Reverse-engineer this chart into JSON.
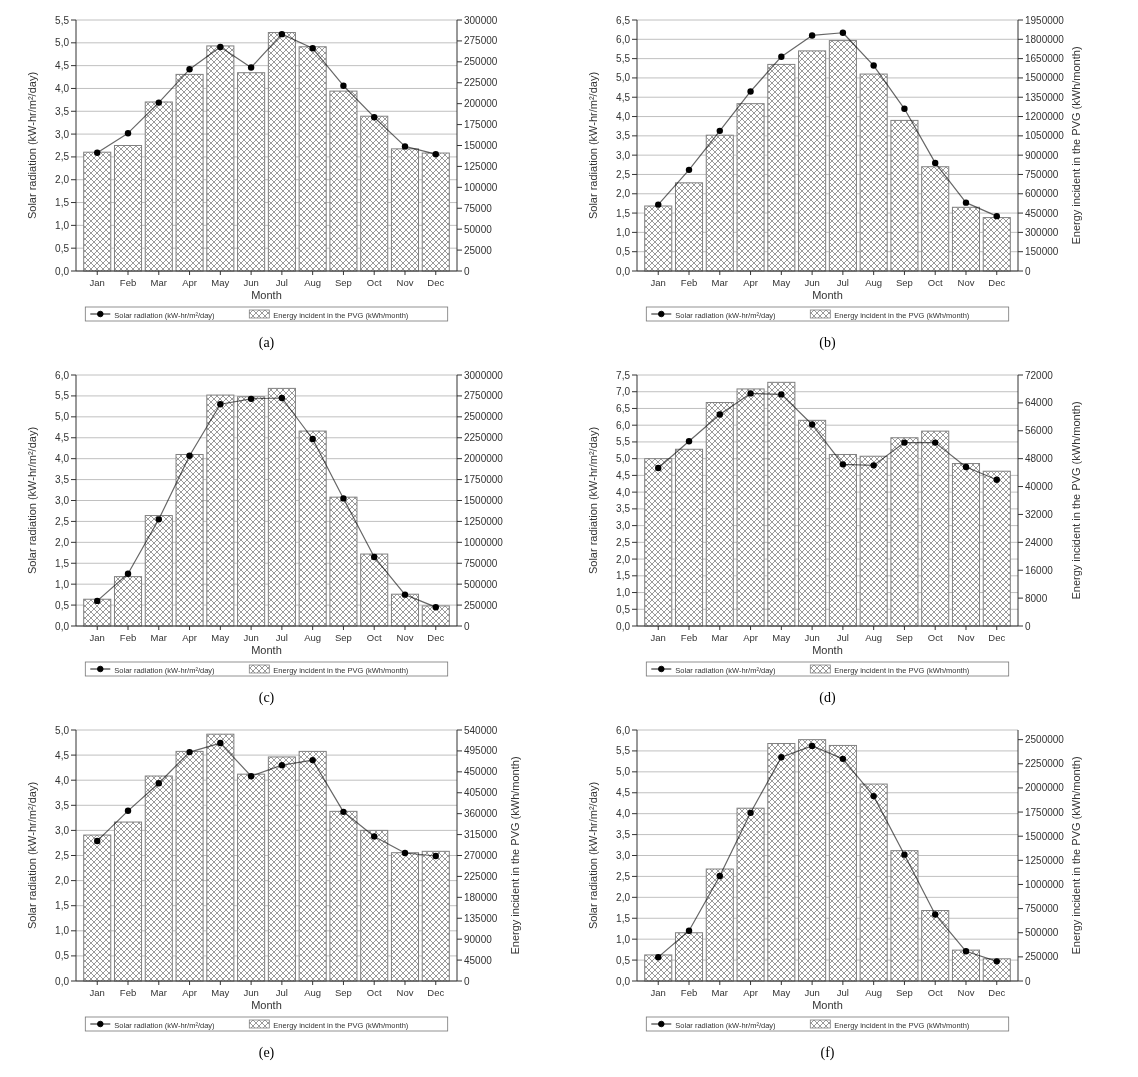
{
  "chart_data": [
    {
      "type": "bar",
      "categories": [
        "Jan",
        "Feb",
        "Mar",
        "Apr",
        "May",
        "Jun",
        "Jul",
        "Aug",
        "Sep",
        "Oct",
        "Nov",
        "Dec"
      ],
      "xlabel": "Month",
      "ylabel": "Solar radiation (kW-hr/m²/day)",
      "annotations": [
        "(a)"
      ],
      "grid": "y",
      "legend": "bottom",
      "marker": "circle",
      "ylim": [
        0,
        5.5
      ],
      "yticks": [
        {
          "value": 0,
          "label": "0,0"
        },
        {
          "value": 0.5,
          "label": "0,5"
        },
        {
          "value": 1,
          "label": "1,0"
        },
        {
          "value": 1.5,
          "label": "1,5"
        },
        {
          "value": 2,
          "label": "2,0"
        },
        {
          "value": 2.5,
          "label": "2,5"
        },
        {
          "value": 3,
          "label": "3,0"
        },
        {
          "value": 3.5,
          "label": "3,5"
        },
        {
          "value": 4,
          "label": "4,0"
        },
        {
          "value": 4.5,
          "label": "4,5"
        },
        {
          "value": 5,
          "label": "5,0"
        },
        {
          "value": 5.5,
          "label": "5,5"
        }
      ],
      "y2lim": [
        0,
        300000
      ],
      "y2ticks": [
        0,
        25000,
        50000,
        75000,
        100000,
        125000,
        150000,
        175000,
        200000,
        225000,
        250000,
        275000,
        300000
      ],
      "series": [
        {
          "name": "Solar radiation (kW-hr/m²/day)",
          "type": "line",
          "color": "#000000",
          "values": [
            2.59,
            3.02,
            3.69,
            4.42,
            4.91,
            4.46,
            5.19,
            4.88,
            4.06,
            3.37,
            2.73,
            2.56
          ]
        },
        {
          "name": "Energy incident in the PVG (kWh/month)",
          "axis": "y2",
          "color": "#808080",
          "values": [
            142000,
            150000,
            202000,
            235000,
            269000,
            237000,
            285000,
            268000,
            215000,
            185000,
            146000,
            141000
          ]
        }
      ]
    },
    {
      "type": "bar",
      "categories": [
        "Jan",
        "Feb",
        "Mar",
        "Apr",
        "May",
        "Jun",
        "Jul",
        "Aug",
        "Sep",
        "Oct",
        "Nov",
        "Dec"
      ],
      "xlabel": "Month",
      "ylabel": "Solar radiation (kW-hr/m²/day)",
      "y2label": "Energy incident in the PVG (kWh/month)",
      "annotations": [
        "(b)"
      ],
      "grid": "y",
      "legend": "bottom",
      "marker": "circle",
      "ylim": [
        0,
        6.5
      ],
      "yticks": [
        {
          "value": 0,
          "label": "0,0"
        },
        {
          "value": 0.5,
          "label": "0,5"
        },
        {
          "value": 1,
          "label": "1,0"
        },
        {
          "value": 1.5,
          "label": "1,5"
        },
        {
          "value": 2,
          "label": "2,0"
        },
        {
          "value": 2.5,
          "label": "2,5"
        },
        {
          "value": 3,
          "label": "3,0"
        },
        {
          "value": 3.5,
          "label": "3,5"
        },
        {
          "value": 4,
          "label": "4,0"
        },
        {
          "value": 4.5,
          "label": "4,5"
        },
        {
          "value": 5,
          "label": "5,0"
        },
        {
          "value": 5.5,
          "label": "5,5"
        },
        {
          "value": 6,
          "label": "6,0"
        },
        {
          "value": 6.5,
          "label": "6,5"
        }
      ],
      "y2lim": [
        0,
        1950000
      ],
      "y2ticks": [
        0,
        150000,
        300000,
        450000,
        600000,
        750000,
        900000,
        1050000,
        1200000,
        1350000,
        1500000,
        1650000,
        1800000,
        1950000
      ],
      "series": [
        {
          "name": "Solar radiation (kW-hr/m²/day)",
          "type": "line",
          "color": "#000000",
          "values": [
            1.72,
            2.62,
            3.63,
            4.65,
            5.55,
            6.1,
            6.17,
            5.32,
            4.2,
            2.8,
            1.77,
            1.42
          ]
        },
        {
          "name": "Energy incident in the PVG (kWh/month)",
          "axis": "y2",
          "color": "#808080",
          "values": [
            505000,
            685000,
            1055000,
            1300000,
            1605000,
            1710000,
            1790000,
            1530000,
            1170000,
            810000,
            495000,
            415000
          ]
        }
      ]
    },
    {
      "type": "bar",
      "categories": [
        "Jan",
        "Feb",
        "Mar",
        "Apr",
        "May",
        "Jun",
        "Jul",
        "Aug",
        "Sep",
        "Oct",
        "Nov",
        "Dec"
      ],
      "xlabel": "Month",
      "ylabel": "Solar radiation (kW-hr/m²/day)",
      "annotations": [
        "(c)"
      ],
      "grid": "y",
      "legend": "bottom",
      "marker": "circle",
      "ylim": [
        0,
        6
      ],
      "yticks": [
        {
          "value": 0,
          "label": "0,0"
        },
        {
          "value": 0.5,
          "label": "0,5"
        },
        {
          "value": 1,
          "label": "1,0"
        },
        {
          "value": 1.5,
          "label": "1,5"
        },
        {
          "value": 2,
          "label": "2,0"
        },
        {
          "value": 2.5,
          "label": "2,5"
        },
        {
          "value": 3,
          "label": "3,0"
        },
        {
          "value": 3.5,
          "label": "3,5"
        },
        {
          "value": 4,
          "label": "4,0"
        },
        {
          "value": 4.5,
          "label": "4,5"
        },
        {
          "value": 5,
          "label": "5,0"
        },
        {
          "value": 5.5,
          "label": "5,5"
        },
        {
          "value": 6,
          "label": "6,0"
        }
      ],
      "y2lim": [
        0,
        3000000
      ],
      "y2ticks": [
        0,
        250000,
        500000,
        750000,
        1000000,
        1250000,
        1500000,
        1750000,
        2000000,
        2250000,
        2500000,
        2750000,
        3000000
      ],
      "series": [
        {
          "name": "Solar radiation (kW-hr/m²/day)",
          "type": "line",
          "color": "#000000",
          "values": [
            0.6,
            1.25,
            2.55,
            4.07,
            5.3,
            5.43,
            5.45,
            4.47,
            3.05,
            1.65,
            0.75,
            0.45
          ]
        },
        {
          "name": "Energy incident in the PVG (kWh/month)",
          "axis": "y2",
          "color": "#808080",
          "values": [
            320000,
            590000,
            1320000,
            2050000,
            2760000,
            2740000,
            2840000,
            2330000,
            1540000,
            860000,
            380000,
            240000
          ]
        }
      ]
    },
    {
      "type": "bar",
      "categories": [
        "Jan",
        "Feb",
        "Mar",
        "Apr",
        "May",
        "Jun",
        "Jul",
        "Aug",
        "Sep",
        "Oct",
        "Nov",
        "Dec"
      ],
      "xlabel": "Month",
      "ylabel": "Solar radiation (kW-hr/m²/day)",
      "y2label": "Energy incident in the PVG (kWh/month)",
      "annotations": [
        "(d)"
      ],
      "grid": "y",
      "legend": "bottom",
      "marker": "circle",
      "ylim": [
        0,
        7.5
      ],
      "yticks": [
        {
          "value": 0,
          "label": "0,0"
        },
        {
          "value": 0.5,
          "label": "0,5"
        },
        {
          "value": 1,
          "label": "1,0"
        },
        {
          "value": 1.5,
          "label": "1,5"
        },
        {
          "value": 2,
          "label": "2,0"
        },
        {
          "value": 2.5,
          "label": "2,5"
        },
        {
          "value": 3,
          "label": "3,0"
        },
        {
          "value": 3.5,
          "label": "3,5"
        },
        {
          "value": 4,
          "label": "4,0"
        },
        {
          "value": 4.5,
          "label": "4,5"
        },
        {
          "value": 5,
          "label": "5,0"
        },
        {
          "value": 5.5,
          "label": "5,5"
        },
        {
          "value": 6,
          "label": "6,0"
        },
        {
          "value": 6.5,
          "label": "6,5"
        },
        {
          "value": 7,
          "label": "7,0"
        },
        {
          "value": 7.5,
          "label": "7,5"
        }
      ],
      "y2lim": [
        0,
        72000
      ],
      "y2ticks": [
        0,
        8000,
        16000,
        24000,
        32000,
        40000,
        48000,
        56000,
        64000,
        72000
      ],
      "series": [
        {
          "name": "Solar radiation (kW-hr/m²/day)",
          "type": "line",
          "color": "#000000",
          "values": [
            4.72,
            5.52,
            6.32,
            6.95,
            6.92,
            6.02,
            4.83,
            4.8,
            5.48,
            5.48,
            4.75,
            4.37
          ]
        },
        {
          "name": "Energy incident in the PVG (kWh/month)",
          "axis": "y2",
          "color": "#808080",
          "values": [
            48000,
            50700,
            64100,
            68000,
            69900,
            59000,
            49200,
            48700,
            54000,
            55900,
            46600,
            44400
          ]
        }
      ]
    },
    {
      "type": "bar",
      "categories": [
        "Jan",
        "Feb",
        "Mar",
        "Apr",
        "May",
        "Jun",
        "Jul",
        "Aug",
        "Sep",
        "Oct",
        "Nov",
        "Dec"
      ],
      "xlabel": "Month",
      "ylabel": "Solar radiation (kW-hr/m²/day)",
      "y2label": "Energy incident in the PVG (kWh/month)",
      "annotations": [
        "(e)"
      ],
      "grid": "y",
      "legend": "bottom",
      "marker": "circle",
      "ylim": [
        0,
        5
      ],
      "yticks": [
        {
          "value": 0,
          "label": "0,0"
        },
        {
          "value": 0.5,
          "label": "0,5"
        },
        {
          "value": 1,
          "label": "1,0"
        },
        {
          "value": 1.5,
          "label": "1,5"
        },
        {
          "value": 2,
          "label": "2,0"
        },
        {
          "value": 2.5,
          "label": "2,5"
        },
        {
          "value": 3,
          "label": "3,0"
        },
        {
          "value": 3.5,
          "label": "3,5"
        },
        {
          "value": 4,
          "label": "4,0"
        },
        {
          "value": 4.5,
          "label": "4,5"
        },
        {
          "value": 5,
          "label": "5,0"
        }
      ],
      "y2lim": [
        0,
        540000
      ],
      "y2ticks": [
        0,
        45000,
        90000,
        135000,
        180000,
        225000,
        270000,
        315000,
        360000,
        405000,
        450000,
        495000,
        540000
      ],
      "series": [
        {
          "name": "Solar radiation (kW-hr/m²/day)",
          "type": "line",
          "color": "#000000",
          "values": [
            2.79,
            3.39,
            3.94,
            4.56,
            4.74,
            4.08,
            4.3,
            4.4,
            3.37,
            2.88,
            2.55,
            2.49
          ]
        },
        {
          "name": "Energy incident in the PVG (kWh/month)",
          "axis": "y2",
          "color": "#808080",
          "values": [
            314000,
            342000,
            441000,
            494000,
            531000,
            445000,
            482000,
            494000,
            365000,
            324000,
            276000,
            279000
          ]
        }
      ]
    },
    {
      "type": "bar",
      "categories": [
        "Jan",
        "Feb",
        "Mar",
        "Apr",
        "May",
        "Jun",
        "Jul",
        "Aug",
        "Sep",
        "Oct",
        "Nov",
        "Dec"
      ],
      "xlabel": "Month",
      "ylabel": "Solar radiation (kW-hr/m²/day)",
      "y2label": "Energy incident in the PVG (kWh/month)",
      "annotations": [
        "(f)"
      ],
      "grid": "y",
      "legend": "bottom",
      "marker": "circle",
      "ylim": [
        0,
        6
      ],
      "yticks": [
        {
          "value": 0,
          "label": "0,0"
        },
        {
          "value": 0.5,
          "label": "0,5"
        },
        {
          "value": 1,
          "label": "1,0"
        },
        {
          "value": 1.5,
          "label": "1,5"
        },
        {
          "value": 2,
          "label": "2,0"
        },
        {
          "value": 2.5,
          "label": "2,5"
        },
        {
          "value": 3,
          "label": "3,0"
        },
        {
          "value": 3.5,
          "label": "3,5"
        },
        {
          "value": 4,
          "label": "4,0"
        },
        {
          "value": 4.5,
          "label": "4,5"
        },
        {
          "value": 5,
          "label": "5,0"
        },
        {
          "value": 5.5,
          "label": "5,5"
        },
        {
          "value": 6,
          "label": "6,0"
        }
      ],
      "y2lim": [
        0,
        2600000
      ],
      "y2ticks": [
        0,
        250000,
        500000,
        750000,
        1000000,
        1250000,
        1500000,
        1750000,
        2000000,
        2250000,
        2500000
      ],
      "series": [
        {
          "name": "Solar radiation (kW-hr/m²/day)",
          "type": "line",
          "color": "#000000",
          "values": [
            0.57,
            1.2,
            2.51,
            4.02,
            5.35,
            5.62,
            5.31,
            4.42,
            3.02,
            1.59,
            0.71,
            0.47
          ]
        },
        {
          "name": "Energy incident in the PVG (kWh/month)",
          "axis": "y2",
          "color": "#808080",
          "values": [
            270000,
            500000,
            1160000,
            1790000,
            2460000,
            2500000,
            2440000,
            2040000,
            1350000,
            730000,
            320000,
            230000
          ]
        }
      ]
    }
  ]
}
